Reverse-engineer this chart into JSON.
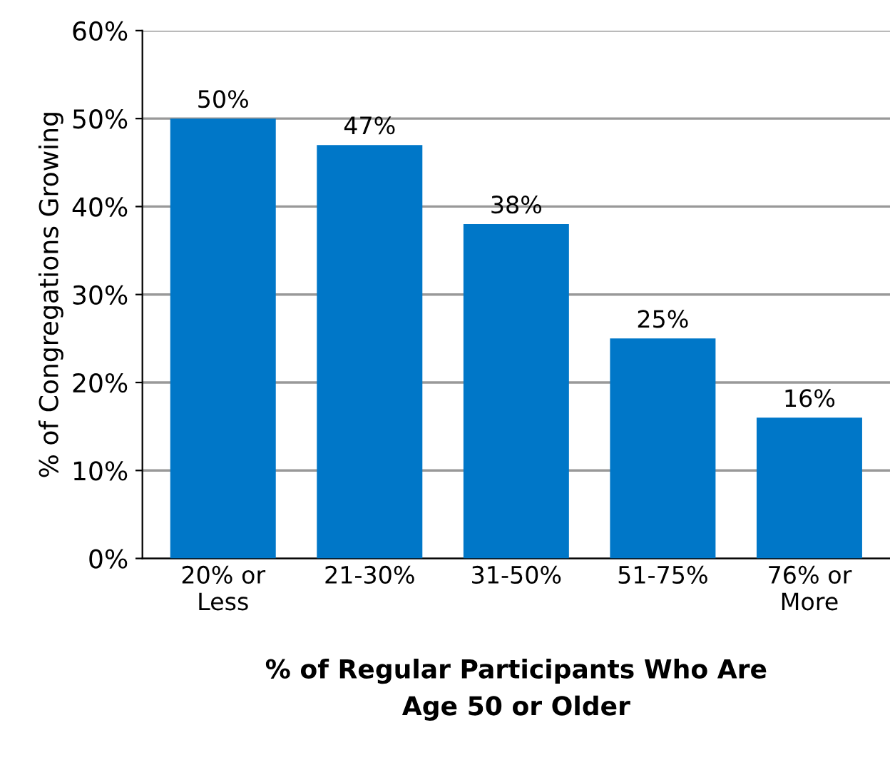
{
  "chart_data": {
    "type": "bar",
    "categories": [
      "20% or\nLess",
      "21-30%",
      "31-50%",
      "51-75%",
      "76% or\nMore"
    ],
    "values": [
      50,
      47,
      38,
      25,
      16
    ],
    "value_labels": [
      "50%",
      "47%",
      "38%",
      "25%",
      "16%"
    ],
    "color": "#0077c8",
    "ylabel": "% of Congregations Growing",
    "xlabel": "% of Regular Participants Who Are\nAge 50 or Older",
    "ylim": [
      0,
      60
    ],
    "yticks": [
      {
        "value": 0,
        "label": "0%"
      },
      {
        "value": 10,
        "label": "10%"
      },
      {
        "value": 20,
        "label": "20%"
      },
      {
        "value": 30,
        "label": "30%"
      },
      {
        "value": 40,
        "label": "40%"
      },
      {
        "value": 50,
        "label": "50%"
      },
      {
        "value": 60,
        "label": "60%"
      }
    ],
    "grid": "y"
  }
}
